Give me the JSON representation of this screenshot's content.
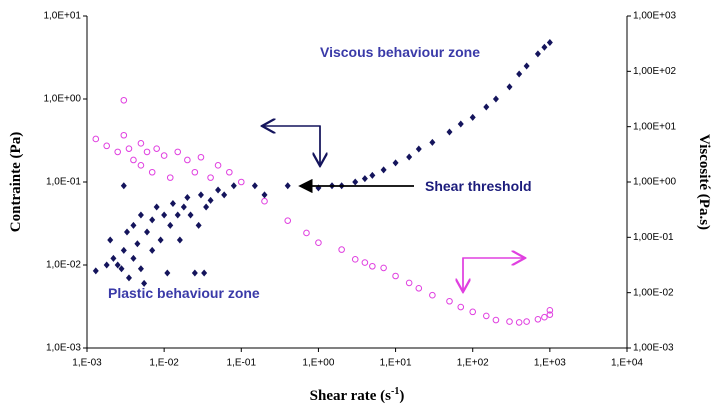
{
  "chart_data": {
    "type": "scatter",
    "x_label": [
      "Shear rate (s",
      "-1",
      ")"
    ],
    "y_label": "Contrainte (Pa)",
    "y2_label": "Viscosité (Pa.s)",
    "xscale": "log",
    "yscale": "log",
    "y2scale": "log",
    "xlim": [
      0.001,
      10000
    ],
    "xticks": [
      {
        "value": 0.001,
        "label": "1,E-03"
      },
      {
        "value": 0.01,
        "label": "1,E-02"
      },
      {
        "value": 0.1,
        "label": "1,E-01"
      },
      {
        "value": 1,
        "label": "1,E+00"
      },
      {
        "value": 10,
        "label": "1,E+01"
      },
      {
        "value": 100,
        "label": "1,E+02"
      },
      {
        "value": 1000,
        "label": "1,E+03"
      },
      {
        "value": 10000,
        "label": "1,E+04"
      }
    ],
    "ylim": [
      0.001,
      10
    ],
    "yticks": [
      {
        "value": 10,
        "label": "1,0E+01"
      },
      {
        "value": 1,
        "label": "1,0E+00"
      },
      {
        "value": 0.1,
        "label": "1,0E-01"
      },
      {
        "value": 0.01,
        "label": "1,0E-02"
      },
      {
        "value": 0.001,
        "label": "1,0E-03"
      }
    ],
    "y2lim": [
      0.001,
      1000
    ],
    "y2ticks": [
      {
        "value": 1000,
        "label": "1,00E+03"
      },
      {
        "value": 100,
        "label": "1,00E+02"
      },
      {
        "value": 10,
        "label": "1,00E+01"
      },
      {
        "value": 1,
        "label": "1,00E+00"
      },
      {
        "value": 0.1,
        "label": "1,00E-01"
      },
      {
        "value": 0.01,
        "label": "1,00E-02"
      },
      {
        "value": 0.001,
        "label": "1,00E-03"
      }
    ],
    "annotations": [
      "Viscous behaviour zone",
      "Shear threshold",
      "Plastic behaviour zone"
    ],
    "series": [
      {
        "color": "#14145c",
        "marker": "diamond",
        "axis": "y",
        "x": [
          0.0013,
          0.0018,
          0.002,
          0.0022,
          0.0025,
          0.0028,
          0.003,
          0.003,
          0.0033,
          0.0035,
          0.004,
          0.004,
          0.0045,
          0.005,
          0.005,
          0.0055,
          0.006,
          0.007,
          0.007,
          0.008,
          0.009,
          0.01,
          0.011,
          0.012,
          0.013,
          0.015,
          0.016,
          0.018,
          0.02,
          0.022,
          0.025,
          0.028,
          0.03,
          0.033,
          0.035,
          0.04,
          0.05,
          0.06,
          0.08,
          0.15,
          0.2,
          0.4,
          0.7,
          1,
          1.5,
          2,
          3,
          4,
          5,
          7,
          10,
          15,
          20,
          30,
          50,
          70,
          100,
          150,
          200,
          300,
          400,
          500,
          700,
          850,
          1000
        ],
        "values": [
          0.0085,
          0.01,
          0.02,
          0.012,
          0.01,
          0.009,
          0.09,
          0.015,
          0.025,
          0.007,
          0.012,
          0.03,
          0.018,
          0.009,
          0.04,
          0.006,
          0.025,
          0.015,
          0.035,
          0.05,
          0.02,
          0.04,
          0.008,
          0.03,
          0.055,
          0.04,
          0.02,
          0.05,
          0.065,
          0.04,
          0.008,
          0.03,
          0.07,
          0.008,
          0.05,
          0.06,
          0.08,
          0.07,
          0.09,
          0.09,
          0.07,
          0.09,
          0.09,
          0.085,
          0.09,
          0.09,
          0.1,
          0.11,
          0.12,
          0.14,
          0.17,
          0.2,
          0.25,
          0.3,
          0.4,
          0.5,
          0.6,
          0.8,
          1,
          1.4,
          2,
          2.5,
          3.5,
          4.2,
          4.8
        ]
      },
      {
        "color": "#e040e0",
        "marker": "circle",
        "axis": "y2",
        "x": [
          0.0013,
          0.0018,
          0.0025,
          0.003,
          0.003,
          0.0035,
          0.004,
          0.005,
          0.005,
          0.006,
          0.007,
          0.008,
          0.01,
          0.012,
          0.015,
          0.02,
          0.025,
          0.03,
          0.04,
          0.05,
          0.07,
          0.1,
          0.2,
          0.4,
          0.7,
          1,
          2,
          3,
          4,
          5,
          7,
          10,
          15,
          20,
          30,
          50,
          70,
          100,
          150,
          200,
          300,
          400,
          500,
          700,
          850,
          1000,
          1000
        ],
        "values": [
          6,
          4.5,
          3.5,
          30,
          7,
          4,
          2.5,
          5,
          2,
          3.5,
          1.5,
          4,
          3,
          1.2,
          3.5,
          2.5,
          1.5,
          2.8,
          1.2,
          2,
          1.5,
          1,
          0.45,
          0.2,
          0.12,
          0.08,
          0.06,
          0.04,
          0.035,
          0.03,
          0.028,
          0.02,
          0.015,
          0.012,
          0.009,
          0.007,
          0.0055,
          0.0045,
          0.0038,
          0.0032,
          0.003,
          0.0029,
          0.003,
          0.0033,
          0.0036,
          0.004,
          0.0048
        ]
      }
    ]
  }
}
